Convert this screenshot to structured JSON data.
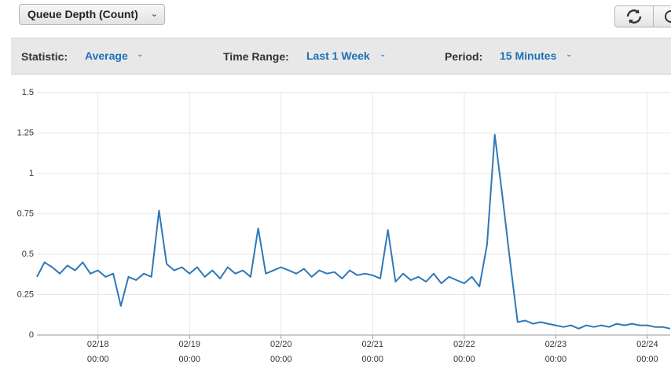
{
  "toolbar": {
    "metric": "Queue Depth (Count)"
  },
  "controls": {
    "statistic_label": "Statistic:",
    "statistic": "Average",
    "range_label": "Time Range:",
    "range": "Last 1 Week",
    "period_label": "Period:",
    "period": "15 Minutes"
  },
  "chart_data": {
    "type": "line",
    "color": "#2f78b7",
    "grid": true,
    "xlim": [
      "02/17 08:00",
      "02/24 06:00"
    ],
    "xticks": [
      "02/18 00:00",
      "02/19 00:00",
      "02/20 00:00",
      "02/21 00:00",
      "02/22 00:00",
      "02/23 00:00",
      "02/24 00:00"
    ],
    "ylim": [
      0,
      1.5
    ],
    "yticks": [
      0,
      0.25,
      0.5,
      0.75,
      1,
      1.25,
      1.5
    ],
    "x": [
      "02/17 08:00",
      "02/17 10:00",
      "02/17 12:00",
      "02/17 14:00",
      "02/17 16:00",
      "02/17 18:00",
      "02/17 20:00",
      "02/17 22:00",
      "02/18 00:00",
      "02/18 02:00",
      "02/18 04:00",
      "02/18 06:00",
      "02/18 08:00",
      "02/18 10:00",
      "02/18 12:00",
      "02/18 14:00",
      "02/18 16:00",
      "02/18 18:00",
      "02/18 20:00",
      "02/18 22:00",
      "02/19 00:00",
      "02/19 02:00",
      "02/19 04:00",
      "02/19 06:00",
      "02/19 08:00",
      "02/19 10:00",
      "02/19 12:00",
      "02/19 14:00",
      "02/19 16:00",
      "02/19 18:00",
      "02/19 20:00",
      "02/19 22:00",
      "02/20 00:00",
      "02/20 02:00",
      "02/20 04:00",
      "02/20 06:00",
      "02/20 08:00",
      "02/20 10:00",
      "02/20 12:00",
      "02/20 14:00",
      "02/20 16:00",
      "02/20 18:00",
      "02/20 20:00",
      "02/20 22:00",
      "02/21 00:00",
      "02/21 02:00",
      "02/21 04:00",
      "02/21 06:00",
      "02/21 08:00",
      "02/21 10:00",
      "02/21 12:00",
      "02/21 14:00",
      "02/21 16:00",
      "02/21 18:00",
      "02/21 20:00",
      "02/21 22:00",
      "02/22 00:00",
      "02/22 02:00",
      "02/22 04:00",
      "02/22 06:00",
      "02/22 08:00",
      "02/22 10:00",
      "02/22 12:00",
      "02/22 14:00",
      "02/22 16:00",
      "02/22 18:00",
      "02/22 20:00",
      "02/22 22:00",
      "02/23 00:00",
      "02/23 02:00",
      "02/23 04:00",
      "02/23 06:00",
      "02/23 08:00",
      "02/23 10:00",
      "02/23 12:00",
      "02/23 14:00",
      "02/23 16:00",
      "02/23 18:00",
      "02/23 20:00",
      "02/23 22:00",
      "02/24 00:00",
      "02/24 02:00",
      "02/24 04:00",
      "02/24 06:00"
    ],
    "values": [
      0.36,
      0.45,
      0.42,
      0.38,
      0.43,
      0.4,
      0.45,
      0.38,
      0.4,
      0.36,
      0.38,
      0.18,
      0.36,
      0.34,
      0.38,
      0.36,
      0.77,
      0.44,
      0.4,
      0.42,
      0.38,
      0.42,
      0.36,
      0.4,
      0.35,
      0.42,
      0.38,
      0.4,
      0.36,
      0.66,
      0.38,
      0.4,
      0.42,
      0.4,
      0.38,
      0.41,
      0.36,
      0.4,
      0.38,
      0.39,
      0.35,
      0.4,
      0.37,
      0.38,
      0.37,
      0.35,
      0.65,
      0.33,
      0.38,
      0.34,
      0.36,
      0.33,
      0.38,
      0.32,
      0.36,
      0.34,
      0.32,
      0.36,
      0.3,
      0.56,
      1.24,
      0.86,
      0.46,
      0.08,
      0.09,
      0.07,
      0.08,
      0.07,
      0.06,
      0.05,
      0.06,
      0.04,
      0.06,
      0.05,
      0.06,
      0.05,
      0.07,
      0.06,
      0.07,
      0.06,
      0.06,
      0.05,
      0.05,
      0.04
    ]
  }
}
